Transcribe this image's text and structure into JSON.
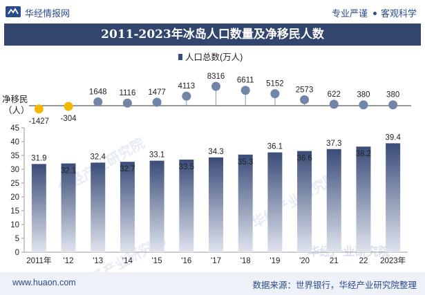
{
  "header": {
    "brand": "华经情报网",
    "tag_left": "专业严谨",
    "tag_right": "客观科学"
  },
  "title": "2011-2023年冰岛人口数量及净移民人数",
  "footer": {
    "url": "www.huaon.com",
    "source": "数据来源：世界银行，华经产业研究院整理"
  },
  "watermark": "华经产业研究院",
  "colors": {
    "brand": "#2a4a8c",
    "title_bg": "#32456d",
    "bar_top": "#3a4c78",
    "bar_bottom": "#dfe4ee",
    "marker_blue": "#7285a8",
    "marker_negative": "#f5b800",
    "footer_bg": "#eef1f7"
  },
  "chart_data": [
    {
      "type": "bar",
      "legend": "人口总数(万人)",
      "legend_position": "top-center",
      "categories": [
        "2011年",
        "'12",
        "'13",
        "'14",
        "'15",
        "'16",
        "'17",
        "'18",
        "'19",
        "'20",
        "21",
        "22",
        "2023年"
      ],
      "values": [
        31.9,
        32.1,
        32.4,
        32.7,
        33.1,
        33.5,
        34.3,
        35.3,
        36.1,
        36.6,
        37.3,
        38.2,
        39.4
      ],
      "ylim": [
        0,
        45
      ],
      "yticks": [
        0,
        5,
        10,
        15,
        20,
        25,
        30,
        35,
        40,
        45
      ],
      "grid": false
    },
    {
      "type": "scatter",
      "ylabel": "净移民（人）",
      "categories": [
        "2011年",
        "'12",
        "'13",
        "'14",
        "'15",
        "'16",
        "'17",
        "'18",
        "'19",
        "'20",
        "21",
        "22",
        "2023年"
      ],
      "values": [
        -1427,
        -304,
        1648,
        1116,
        1477,
        4113,
        8316,
        6611,
        5152,
        2573,
        622,
        380,
        380
      ],
      "ylim": [
        -2000,
        9000
      ]
    }
  ]
}
